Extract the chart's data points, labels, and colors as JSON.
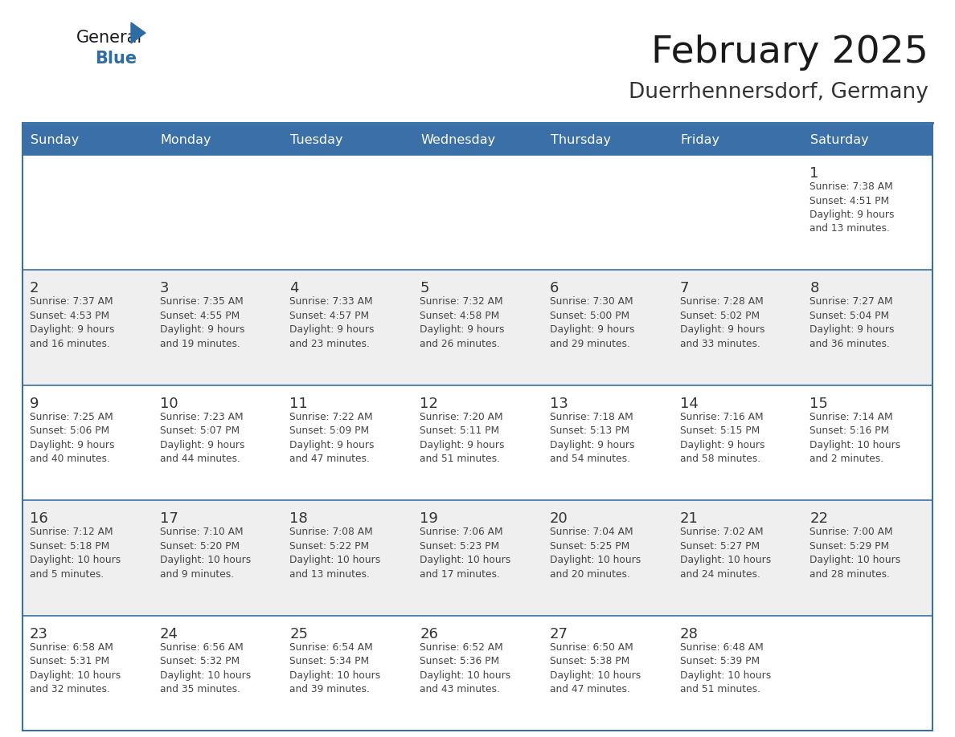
{
  "title": "February 2025",
  "subtitle": "Duerrhennersdorf, Germany",
  "days_of_week": [
    "Sunday",
    "Monday",
    "Tuesday",
    "Wednesday",
    "Thursday",
    "Friday",
    "Saturday"
  ],
  "header_bg": "#3a6fa8",
  "header_text": "#FFFFFF",
  "row_bg_white": "#FFFFFF",
  "row_bg_gray": "#EFEFEF",
  "row_separator": "#3a6fa8",
  "day_num_color": "#333333",
  "info_text_color": "#444444",
  "title_color": "#1a1a1a",
  "subtitle_color": "#333333",
  "logo_general_color": "#1a1a1a",
  "logo_blue_color": "#2E6DA4",
  "calendar": [
    [
      null,
      null,
      null,
      null,
      null,
      null,
      1
    ],
    [
      2,
      3,
      4,
      5,
      6,
      7,
      8
    ],
    [
      9,
      10,
      11,
      12,
      13,
      14,
      15
    ],
    [
      16,
      17,
      18,
      19,
      20,
      21,
      22
    ],
    [
      23,
      24,
      25,
      26,
      27,
      28,
      null
    ]
  ],
  "sun_info": {
    "1": {
      "rise": "7:38 AM",
      "set": "4:51 PM",
      "daylight": "9 hours\nand 13 minutes."
    },
    "2": {
      "rise": "7:37 AM",
      "set": "4:53 PM",
      "daylight": "9 hours\nand 16 minutes."
    },
    "3": {
      "rise": "7:35 AM",
      "set": "4:55 PM",
      "daylight": "9 hours\nand 19 minutes."
    },
    "4": {
      "rise": "7:33 AM",
      "set": "4:57 PM",
      "daylight": "9 hours\nand 23 minutes."
    },
    "5": {
      "rise": "7:32 AM",
      "set": "4:58 PM",
      "daylight": "9 hours\nand 26 minutes."
    },
    "6": {
      "rise": "7:30 AM",
      "set": "5:00 PM",
      "daylight": "9 hours\nand 29 minutes."
    },
    "7": {
      "rise": "7:28 AM",
      "set": "5:02 PM",
      "daylight": "9 hours\nand 33 minutes."
    },
    "8": {
      "rise": "7:27 AM",
      "set": "5:04 PM",
      "daylight": "9 hours\nand 36 minutes."
    },
    "9": {
      "rise": "7:25 AM",
      "set": "5:06 PM",
      "daylight": "9 hours\nand 40 minutes."
    },
    "10": {
      "rise": "7:23 AM",
      "set": "5:07 PM",
      "daylight": "9 hours\nand 44 minutes."
    },
    "11": {
      "rise": "7:22 AM",
      "set": "5:09 PM",
      "daylight": "9 hours\nand 47 minutes."
    },
    "12": {
      "rise": "7:20 AM",
      "set": "5:11 PM",
      "daylight": "9 hours\nand 51 minutes."
    },
    "13": {
      "rise": "7:18 AM",
      "set": "5:13 PM",
      "daylight": "9 hours\nand 54 minutes."
    },
    "14": {
      "rise": "7:16 AM",
      "set": "5:15 PM",
      "daylight": "9 hours\nand 58 minutes."
    },
    "15": {
      "rise": "7:14 AM",
      "set": "5:16 PM",
      "daylight": "10 hours\nand 2 minutes."
    },
    "16": {
      "rise": "7:12 AM",
      "set": "5:18 PM",
      "daylight": "10 hours\nand 5 minutes."
    },
    "17": {
      "rise": "7:10 AM",
      "set": "5:20 PM",
      "daylight": "10 hours\nand 9 minutes."
    },
    "18": {
      "rise": "7:08 AM",
      "set": "5:22 PM",
      "daylight": "10 hours\nand 13 minutes."
    },
    "19": {
      "rise": "7:06 AM",
      "set": "5:23 PM",
      "daylight": "10 hours\nand 17 minutes."
    },
    "20": {
      "rise": "7:04 AM",
      "set": "5:25 PM",
      "daylight": "10 hours\nand 20 minutes."
    },
    "21": {
      "rise": "7:02 AM",
      "set": "5:27 PM",
      "daylight": "10 hours\nand 24 minutes."
    },
    "22": {
      "rise": "7:00 AM",
      "set": "5:29 PM",
      "daylight": "10 hours\nand 28 minutes."
    },
    "23": {
      "rise": "6:58 AM",
      "set": "5:31 PM",
      "daylight": "10 hours\nand 32 minutes."
    },
    "24": {
      "rise": "6:56 AM",
      "set": "5:32 PM",
      "daylight": "10 hours\nand 35 minutes."
    },
    "25": {
      "rise": "6:54 AM",
      "set": "5:34 PM",
      "daylight": "10 hours\nand 39 minutes."
    },
    "26": {
      "rise": "6:52 AM",
      "set": "5:36 PM",
      "daylight": "10 hours\nand 43 minutes."
    },
    "27": {
      "rise": "6:50 AM",
      "set": "5:38 PM",
      "daylight": "10 hours\nand 47 minutes."
    },
    "28": {
      "rise": "6:48 AM",
      "set": "5:39 PM",
      "daylight": "10 hours\nand 51 minutes."
    }
  }
}
